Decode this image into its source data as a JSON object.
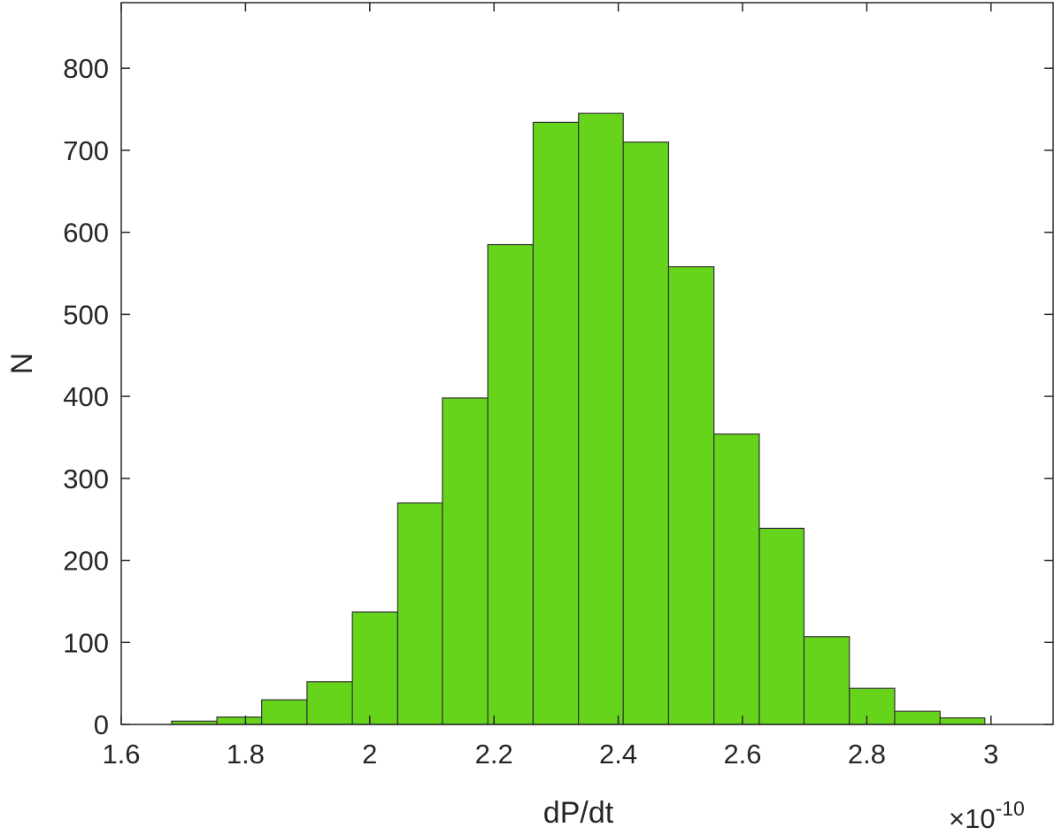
{
  "chart_data": {
    "type": "bar",
    "subtype": "histogram",
    "xlabel": "dP/dt",
    "ylabel": "N",
    "x_exponent_label": "×10",
    "x_exponent_power": "-10",
    "xlim": [
      1.6,
      3.1
    ],
    "ylim": [
      0,
      880
    ],
    "xticks": [
      1.6,
      1.8,
      2.0,
      2.2,
      2.4,
      2.6,
      2.8,
      3.0
    ],
    "xtick_labels": [
      "1.6",
      "1.8",
      "2",
      "2.2",
      "2.4",
      "2.6",
      "2.8",
      "3"
    ],
    "yticks": [
      0,
      100,
      200,
      300,
      400,
      500,
      600,
      700,
      800
    ],
    "ytick_labels": [
      "0",
      "100",
      "200",
      "300",
      "400",
      "500",
      "600",
      "700",
      "800"
    ],
    "bin_edges": [
      1.681,
      1.754,
      1.826,
      1.899,
      1.972,
      2.045,
      2.117,
      2.19,
      2.263,
      2.336,
      2.408,
      2.481,
      2.554,
      2.627,
      2.699,
      2.772,
      2.845,
      2.918,
      2.99
    ],
    "values": [
      4,
      9,
      30,
      52,
      137,
      270,
      398,
      585,
      734,
      745,
      710,
      558,
      354,
      239,
      107,
      44,
      16,
      8
    ],
    "bar_color": "#66d41a",
    "edge_color": "#333333",
    "grid": false,
    "box": true
  }
}
